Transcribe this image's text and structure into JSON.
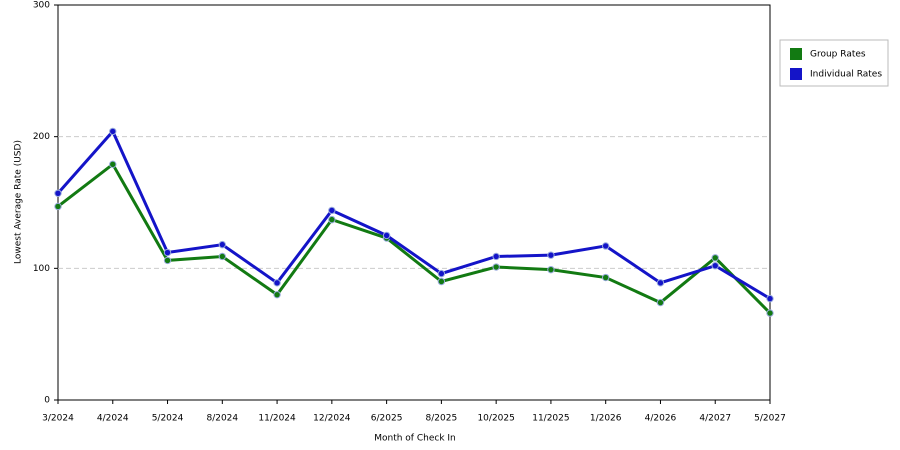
{
  "chart_data": {
    "type": "line",
    "x_label": "Month of Check In",
    "y_label": "Lowest Average Rate (USD)",
    "categories": [
      "3/2024",
      "4/2024",
      "5/2024",
      "8/2024",
      "11/2024",
      "12/2024",
      "6/2025",
      "8/2025",
      "10/2025",
      "11/2025",
      "1/2026",
      "4/2026",
      "4/2027",
      "5/2027"
    ],
    "series": [
      {
        "name": "Group Rates",
        "color": "#127a12",
        "values": [
          147,
          179,
          106,
          109,
          80,
          137,
          123,
          90,
          101,
          99,
          93,
          74,
          108,
          66
        ]
      },
      {
        "name": "Individual Rates",
        "color": "#1414c8",
        "values": [
          157,
          204,
          112,
          118,
          89,
          144,
          125,
          96,
          109,
          110,
          117,
          89,
          102,
          77
        ]
      }
    ],
    "ylim": [
      0,
      300
    ],
    "yticks": [
      0,
      100,
      200,
      300
    ],
    "grid": true,
    "legend": "right"
  }
}
